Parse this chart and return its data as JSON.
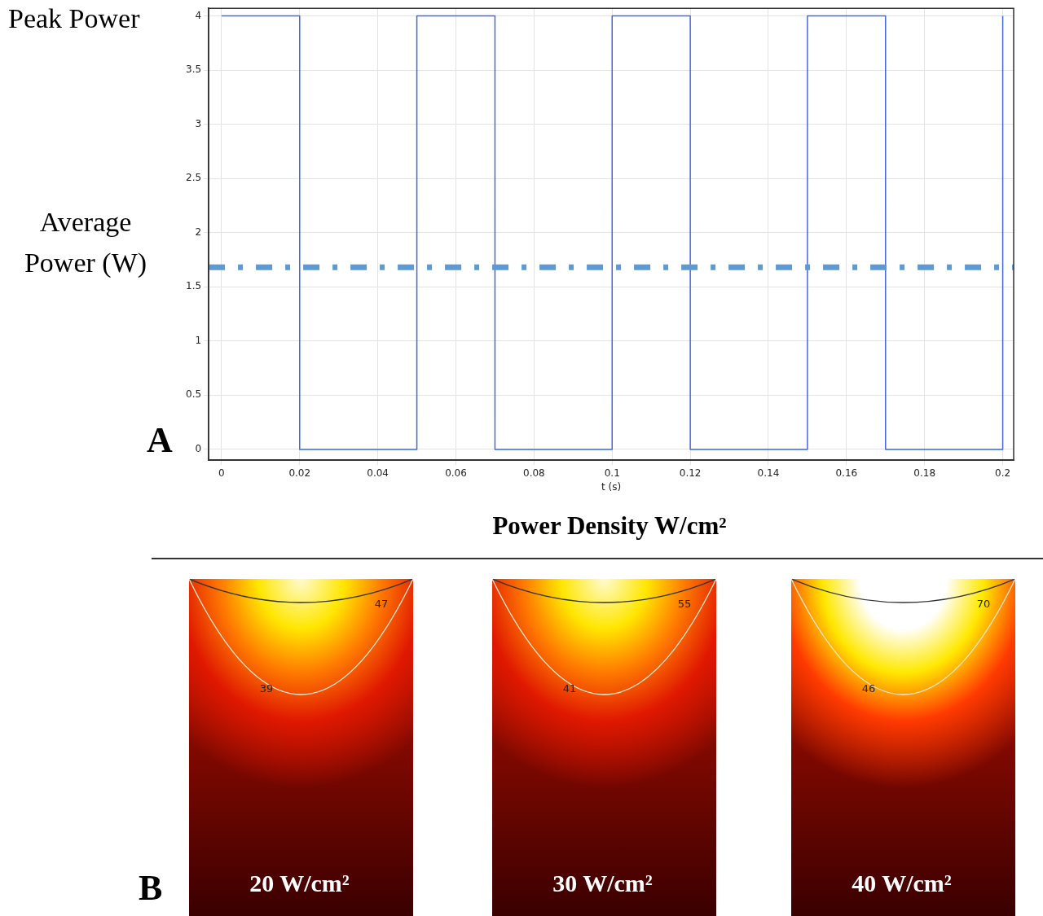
{
  "chart_data": [
    {
      "type": "step",
      "x": [
        0,
        0.02,
        0.05,
        0.07,
        0.1,
        0.12,
        0.15,
        0.17,
        0.2
      ],
      "series": [
        {
          "color": "#4169e1",
          "values": [
            4,
            0,
            4,
            0,
            4,
            0,
            4,
            0,
            4
          ]
        }
      ],
      "xlim": [
        -0.0033,
        0.2028
      ],
      "xticks": [
        0,
        0.02,
        0.04,
        0.06,
        0.08,
        0.1,
        0.12,
        0.14,
        0.16,
        0.18,
        0.2
      ],
      "ylim": [
        -0.1,
        4.07
      ],
      "yticks": [
        0,
        0.5,
        1,
        1.5,
        2,
        2.5,
        3,
        3.5,
        4
      ],
      "xlabel": "t (s)",
      "ylabel": "Average Power (W)",
      "annotations": [
        "Peak Power",
        "A"
      ],
      "ref_lines": [
        {
          "axis": "y",
          "value": 1.68,
          "color": "#5b9bd5",
          "line_style": "dashed"
        }
      ],
      "grid": true
    },
    {
      "type": "other",
      "title": "Power Density W/cm²",
      "annotations": [
        "47",
        "39",
        "20 W/cm²",
        "55",
        "41",
        "30 W/cm²",
        "70",
        "46",
        "40 W/cm²",
        "B"
      ]
    }
  ]
}
